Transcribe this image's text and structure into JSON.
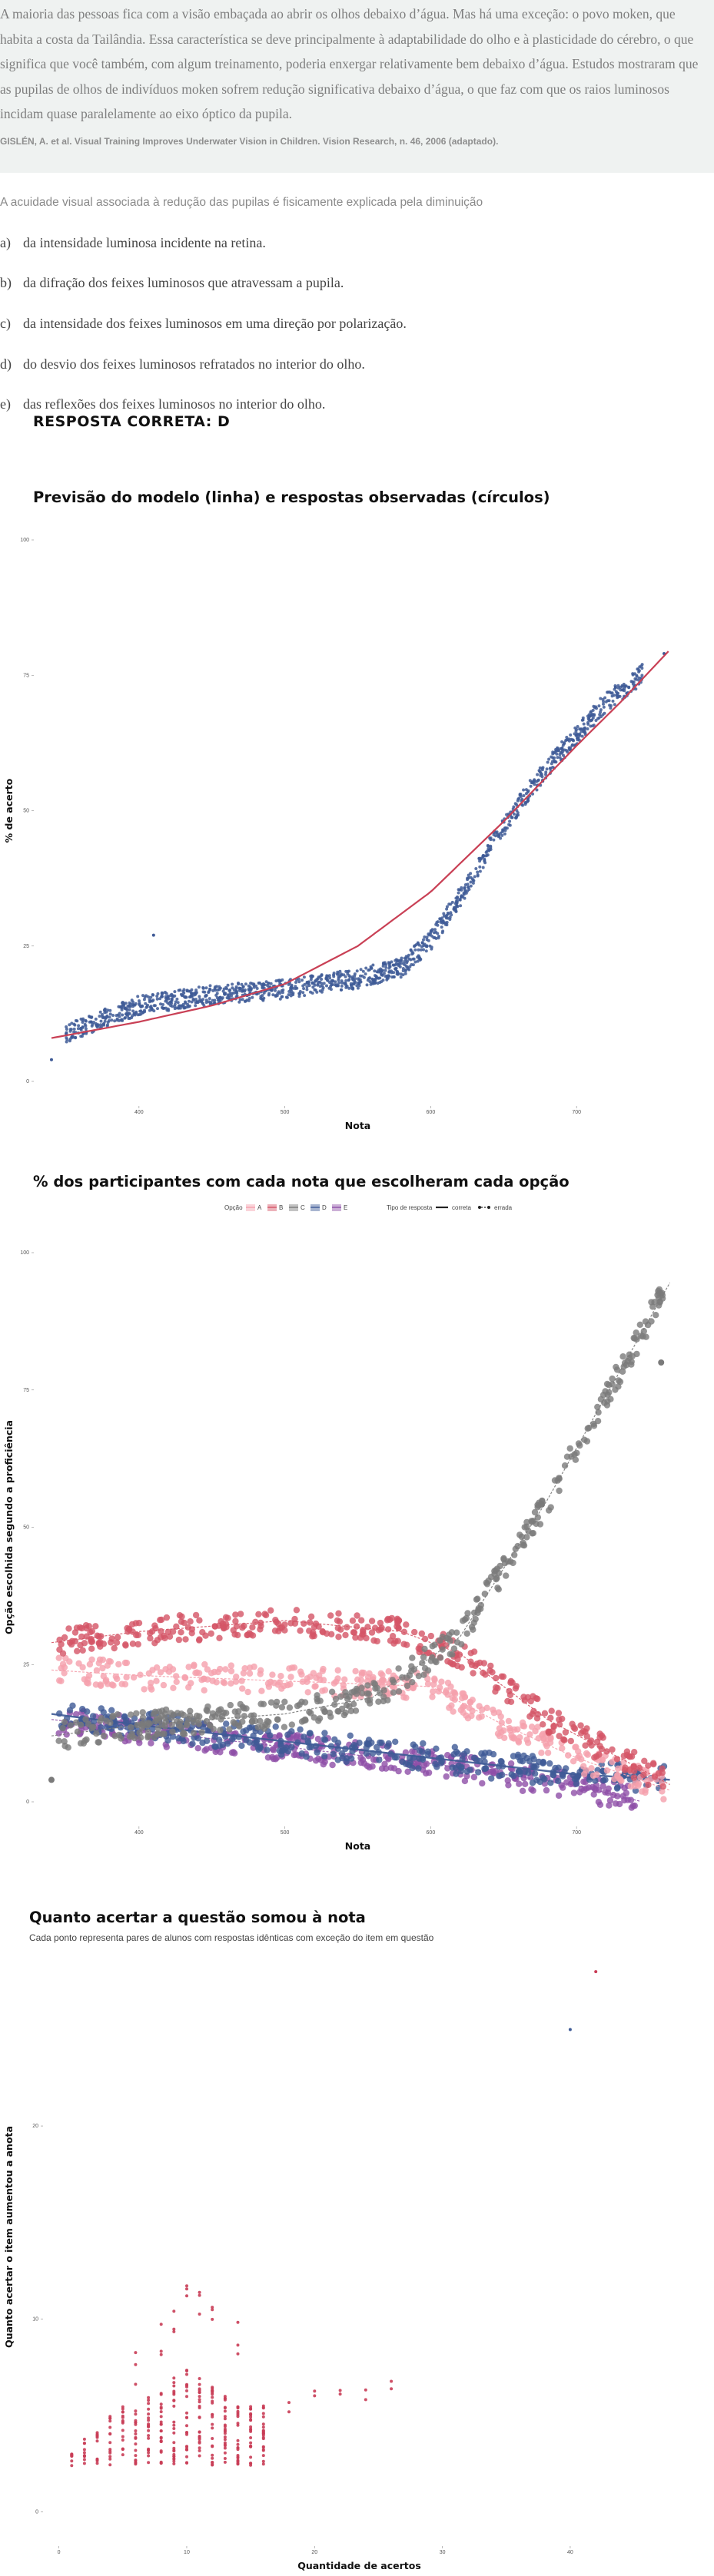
{
  "passage": {
    "text": "A maioria das pessoas fica com a visão embaçada ao abrir os olhos debaixo d’água. Mas há uma exceção: o povo moken, que habita a costa da Tailândia. Essa característica se deve principalmente à adaptabilidade do olho e à plasticidade do cérebro, o que significa que você também, com algum treinamento, poderia enxergar relativamente bem debaixo d’água. Estudos mostraram que as pupilas de olhos de indivíduos moken sofrem redução significativa debaixo d’água, o que faz com que os raios luminosos incidam quase paralelamente ao eixo óptico da pupila.",
    "source": "GISLÉN, A. et al. Visual Training Improves Underwater Vision in Children. Vision Research, n. 46, 2006 (adaptado)."
  },
  "question": {
    "prompt": "A acuidade visual associada à redução das pupilas é fisicamente explicada pela diminuição",
    "options": [
      {
        "letter": "a)",
        "text": "da intensidade luminosa incidente na retina."
      },
      {
        "letter": "b)",
        "text": "da difração dos feixes luminosos que atravessam a pupila."
      },
      {
        "letter": "c)",
        "text": "da intensidade dos feixes luminosos em uma direção por polarização."
      },
      {
        "letter": "d)",
        "text": "do desvio dos feixes luminosos refratados no interior do olho."
      },
      {
        "letter": "e)",
        "text": "das reflexões dos feixes luminosos no interior do olho."
      }
    ],
    "answer": "RESPOSTA CORRETA: D"
  },
  "colors": {
    "model_line": "#c94055",
    "observed": "#3e5a96",
    "A": "#f5a0ac",
    "B": "#d45566",
    "C": "#7a7a7a",
    "D": "#3e5a96",
    "E": "#8e4fa7",
    "increase_points": "#c93d56"
  },
  "chart_data": [
    {
      "type": "scatter",
      "title": "Previsão do modelo (linha) e respostas observadas (círculos)",
      "xlabel": "Nota",
      "ylabel": "% de acerto",
      "x_ticks": [
        "400",
        "500",
        "600",
        "700"
      ],
      "y_ticks": [
        "0",
        "25",
        "50",
        "75",
        "100"
      ],
      "xlim": [
        330,
        770
      ],
      "ylim": [
        0,
        100
      ],
      "grid": false,
      "series": [
        {
          "role": "model-line",
          "x": [
            340,
            400,
            450,
            500,
            550,
            600,
            650,
            700,
            730,
            765
          ],
          "y": [
            8,
            11,
            14,
            18,
            25,
            35,
            48,
            62,
            70,
            80
          ]
        },
        {
          "role": "observed-points",
          "x": [
            340,
            350,
            400,
            450,
            500,
            550,
            580,
            600,
            620,
            640,
            660,
            680,
            700,
            720,
            740,
            760
          ],
          "y": [
            4,
            9,
            14,
            16,
            17,
            19,
            21,
            26,
            34,
            43,
            51,
            58,
            64,
            70,
            74,
            79
          ]
        }
      ]
    },
    {
      "type": "scatter",
      "title": "% dos participantes com cada nota que escolheram cada opção",
      "xlabel": "Nota",
      "ylabel": "Opção escolhida segundo a proficiência",
      "x_ticks": [
        "400",
        "500",
        "600",
        "700"
      ],
      "y_ticks": [
        "0",
        "25",
        "50",
        "75",
        "100"
      ],
      "xlim": [
        330,
        770
      ],
      "ylim": [
        0,
        100
      ],
      "legend": {
        "position": "top",
        "option_title": "Opção",
        "options": [
          "A",
          "B",
          "C",
          "D",
          "E"
        ],
        "type_title": "Tipo de resposta",
        "types": [
          "correta",
          "errada"
        ]
      },
      "series": [
        {
          "name": "A",
          "x": [
            340,
            400,
            500,
            600,
            650,
            700,
            765
          ],
          "y": [
            24,
            23,
            22,
            21,
            14,
            8,
            2
          ]
        },
        {
          "name": "B",
          "x": [
            340,
            400,
            500,
            580,
            620,
            680,
            765
          ],
          "y": [
            29,
            31,
            33,
            31,
            27,
            15,
            3
          ]
        },
        {
          "name": "C",
          "x": [
            340,
            400,
            500,
            560,
            620,
            680,
            765
          ],
          "y": [
            12,
            14,
            16,
            19,
            30,
            55,
            95
          ]
        },
        {
          "name": "D",
          "x": [
            340,
            400,
            500,
            600,
            700,
            765
          ],
          "y": [
            16,
            14,
            11,
            8,
            5,
            4
          ]
        },
        {
          "name": "E",
          "x": [
            340,
            400,
            500,
            600,
            700,
            745
          ],
          "y": [
            15,
            13,
            10,
            7,
            3,
            0
          ]
        }
      ]
    },
    {
      "type": "scatter",
      "title": "Quanto acertar a questão somou à nota",
      "subtitle": "Cada ponto representa pares de alunos com respostas idênticas com exceção do item em questão",
      "xlabel": "Quantidade de acertos",
      "ylabel": "Quanto acertar o item aumentou a anota",
      "x_ticks": [
        "0",
        "10",
        "20",
        "30",
        "40"
      ],
      "y_ticks": [
        "0",
        "10",
        "20"
      ],
      "xlim": [
        -1,
        48
      ],
      "ylim": [
        -0.5,
        29
      ],
      "series": [
        {
          "x": [
            1,
            2,
            3,
            4,
            5,
            6,
            7,
            8,
            9,
            10,
            11,
            12,
            13,
            14,
            15,
            16,
            18,
            20,
            22,
            24,
            26
          ],
          "y": [
            3,
            4,
            4.5,
            5,
            5.5,
            5.5,
            6,
            6.5,
            7,
            7.5,
            7,
            6.5,
            6,
            5.5,
            5.5,
            5.5,
            5.5,
            6,
            6,
            6,
            6.5
          ]
        },
        {
          "x": [
            6,
            8,
            9,
            10,
            11,
            12,
            14
          ],
          "y": [
            9,
            10,
            11,
            12,
            12.5,
            11,
            10
          ]
        },
        {
          "x": [
            40,
            42
          ],
          "y": [
            25,
            28
          ]
        }
      ]
    }
  ]
}
